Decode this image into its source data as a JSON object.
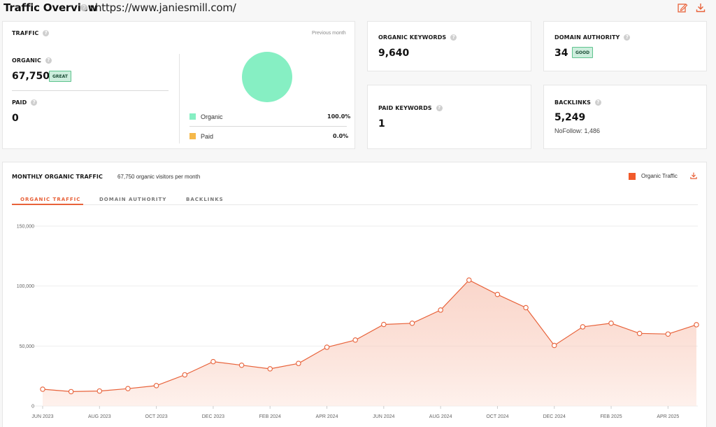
{
  "header": {
    "title": "Traffic Overview",
    "colon": ":",
    "url": "https://www.janiesmill.com/",
    "help_icon": "help-circle-icon",
    "edit_icon": "edit-icon",
    "download_icon": "download-icon",
    "accent_color": "#e8623a"
  },
  "traffic_card": {
    "label": "TRAFFIC",
    "period": "Previous month",
    "organic_label": "ORGANIC",
    "organic_value": "67,750",
    "organic_badge": "GREAT",
    "paid_label": "PAID",
    "paid_value": "0",
    "legend": [
      {
        "name": "Organic",
        "pct": "100.0%",
        "color": "#86efc3"
      },
      {
        "name": "Paid",
        "pct": "0.0%",
        "color": "#f5b84a"
      }
    ],
    "donut_share": {
      "organic": 100.0,
      "paid": 0.0
    }
  },
  "organic_keywords": {
    "label": "ORGANIC KEYWORDS",
    "value": "9,640"
  },
  "paid_keywords": {
    "label": "PAID KEYWORDS",
    "value": "1"
  },
  "domain_authority": {
    "label": "DOMAIN AUTHORITY",
    "value": "34",
    "badge": "GOOD"
  },
  "backlinks": {
    "label": "BACKLINKS",
    "value": "5,249",
    "nofollow": "NoFollow: 1,486"
  },
  "monthly": {
    "title": "MONTHLY ORGANIC TRAFFIC",
    "subtitle": "67,750 organic visitors per month",
    "legend": "Organic Traffic",
    "legend_color": "#f15a2b",
    "tabs": [
      "ORGANIC TRAFFIC",
      "DOMAIN AUTHORITY",
      "BACKLINKS"
    ],
    "active_tab": 0
  },
  "chart_data": {
    "type": "area",
    "series": [
      {
        "name": "Organic Traffic",
        "color": "#e8623a",
        "values": [
          14000,
          12000,
          12500,
          14500,
          17000,
          26000,
          37000,
          34000,
          31000,
          35500,
          49000,
          55000,
          68000,
          69000,
          80000,
          105000,
          93000,
          82000,
          50500,
          66000,
          69000,
          60500,
          60000,
          67750
        ]
      }
    ],
    "x_index_labels": [
      {
        "i": 0,
        "label": "JUN 2023"
      },
      {
        "i": 2,
        "label": "AUG 2023"
      },
      {
        "i": 4,
        "label": "OCT 2023"
      },
      {
        "i": 6,
        "label": "DEC 2023"
      },
      {
        "i": 8,
        "label": "FEB 2024"
      },
      {
        "i": 10,
        "label": "APR 2024"
      },
      {
        "i": 12,
        "label": "JUN 2024"
      },
      {
        "i": 14,
        "label": "AUG 2024"
      },
      {
        "i": 16,
        "label": "OCT 2024"
      },
      {
        "i": 18,
        "label": "DEC 2024"
      },
      {
        "i": 20,
        "label": "FEB 2025"
      },
      {
        "i": 22,
        "label": "APR 2025"
      }
    ],
    "yticks": [
      0,
      50000,
      100000,
      150000
    ],
    "ytick_labels": [
      "0",
      "50,000",
      "100,000",
      "150,000"
    ],
    "ylim": [
      0,
      150000
    ],
    "grid": true,
    "legend_position": "top-right"
  }
}
